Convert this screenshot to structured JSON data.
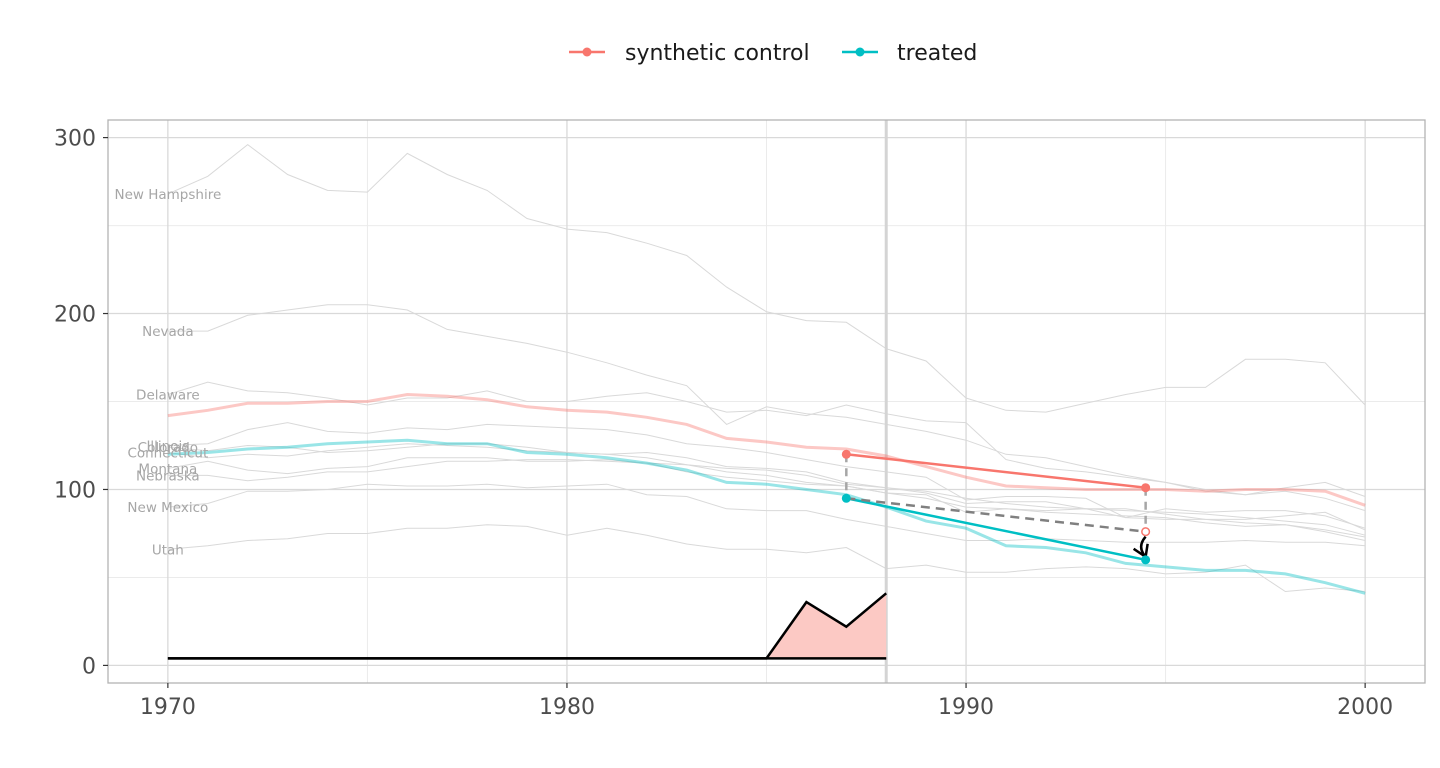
{
  "chart_data": {
    "type": "line",
    "title": "",
    "xlabel": "",
    "ylabel": "",
    "xlim": [
      1968.5,
      2001.5
    ],
    "ylim": [
      -10,
      310
    ],
    "x_ticks": [
      1970,
      1980,
      1990,
      2000
    ],
    "y_ticks": [
      0,
      100,
      200,
      300
    ],
    "grid": true,
    "legend": {
      "position": "top",
      "entries": [
        {
          "label": "synthetic control",
          "color": "#F8766D"
        },
        {
          "label": "treated",
          "color": "#00BFC4"
        }
      ]
    },
    "intervention_year": 1988,
    "colors": {
      "synthetic": "#F8766D",
      "treated": "#00BFC4",
      "donor": "#d9d9d9",
      "weights_fill": "#fcc9c4",
      "weights_line": "#000000",
      "arrow": "#808080",
      "border": "#b3b3b3",
      "grid_major": "#d9d9d9",
      "grid_minor": "#ebebeb"
    },
    "donor_series": [
      {
        "name": "New Hampshire",
        "years": [
          1970,
          1971,
          1972,
          1973,
          1974,
          1975,
          1976,
          1977,
          1978,
          1979,
          1980,
          1981,
          1982,
          1983,
          1984,
          1985,
          1986,
          1987,
          1988,
          1989,
          1990,
          1991,
          1992,
          1993,
          1994,
          1995,
          1996,
          1997,
          1998,
          1999,
          2000
        ],
        "values": [
          268,
          278,
          296,
          279,
          270,
          269,
          291,
          279,
          270,
          254,
          248,
          246,
          240,
          233,
          215,
          201,
          196,
          195,
          180,
          173,
          152,
          145,
          144,
          149,
          154,
          158,
          158,
          174,
          174,
          172,
          148
        ]
      },
      {
        "name": "Nevada",
        "years": [
          1970,
          1971,
          1972,
          1973,
          1974,
          1975,
          1976,
          1977,
          1978,
          1979,
          1980,
          1981,
          1982,
          1983,
          1984,
          1985,
          1986,
          1987,
          1988,
          1989,
          1990,
          1991,
          1992,
          1993,
          1994,
          1995,
          1996,
          1997,
          1998,
          1999,
          2000
        ],
        "values": [
          190,
          190,
          199,
          202,
          205,
          205,
          202,
          191,
          187,
          183,
          178,
          172,
          165,
          159,
          137,
          147,
          143,
          141,
          137,
          133,
          128,
          120,
          118,
          113,
          108,
          104,
          100,
          97,
          101,
          104,
          96
        ]
      },
      {
        "name": "Delaware",
        "years": [
          1970,
          1971,
          1972,
          1973,
          1974,
          1975,
          1976,
          1977,
          1978,
          1979,
          1980,
          1981,
          1982,
          1983,
          1984,
          1985,
          1986,
          1987,
          1988,
          1989,
          1990,
          1991,
          1992,
          1993,
          1994,
          1995,
          1996,
          1997,
          1998,
          1999,
          2000
        ],
        "values": [
          154,
          161,
          156,
          155,
          152,
          148,
          152,
          152,
          156,
          150,
          150,
          153,
          155,
          150,
          144,
          145,
          142,
          148,
          143,
          139,
          138,
          117,
          112,
          110,
          107,
          104,
          99,
          97,
          99,
          95,
          88
        ]
      },
      {
        "name": "Illinois",
        "years": [
          1970,
          1971,
          1972,
          1973,
          1974,
          1975,
          1976,
          1977,
          1978,
          1979,
          1980,
          1981,
          1982,
          1983,
          1984,
          1985,
          1986,
          1987,
          1988,
          1989,
          1990,
          1991,
          1992,
          1993,
          1994,
          1995,
          1996,
          1997,
          1998,
          1999,
          2000
        ],
        "values": [
          125,
          126,
          134,
          138,
          133,
          132,
          135,
          134,
          137,
          136,
          135,
          134,
          131,
          126,
          124,
          121,
          117,
          113,
          110,
          107,
          94,
          96,
          96,
          95,
          84,
          89,
          87,
          88,
          88,
          85,
          78
        ]
      },
      {
        "name": "Colorado",
        "years": [
          1970,
          1971,
          1972,
          1973,
          1974,
          1975,
          1976,
          1977,
          1978,
          1979,
          1980,
          1981,
          1982,
          1983,
          1984,
          1985,
          1986,
          1987,
          1988,
          1989,
          1990,
          1991,
          1992,
          1993,
          1994,
          1995,
          1996,
          1997,
          1998,
          1999,
          2000
        ],
        "values": [
          124,
          122,
          125,
          124,
          121,
          122,
          124,
          126,
          126,
          124,
          121,
          120,
          121,
          118,
          113,
          112,
          110,
          104,
          101,
          98,
          92,
          93,
          93,
          89,
          89,
          86,
          83,
          81,
          80,
          77,
          73
        ]
      },
      {
        "name": "Connecticut",
        "years": [
          1970,
          1971,
          1972,
          1973,
          1974,
          1975,
          1976,
          1977,
          1978,
          1979,
          1980,
          1981,
          1982,
          1983,
          1984,
          1985,
          1986,
          1987,
          1988,
          1989,
          1990,
          1991,
          1992,
          1993,
          1994,
          1995,
          1996,
          1997,
          1998,
          1999,
          2000
        ],
        "values": [
          121,
          118,
          120,
          119,
          122,
          124,
          126,
          125,
          124,
          122,
          121,
          120,
          118,
          114,
          112,
          111,
          108,
          103,
          101,
          99,
          95,
          92,
          90,
          89,
          88,
          87,
          86,
          84,
          82,
          80,
          74
        ]
      },
      {
        "name": "Montana",
        "years": [
          1970,
          1971,
          1972,
          1973,
          1974,
          1975,
          1976,
          1977,
          1978,
          1979,
          1980,
          1981,
          1982,
          1983,
          1984,
          1985,
          1986,
          1987,
          1988,
          1989,
          1990,
          1991,
          1992,
          1993,
          1994,
          1995,
          1996,
          1997,
          1998,
          1999,
          2000
        ],
        "values": [
          112,
          116,
          111,
          109,
          112,
          113,
          118,
          118,
          118,
          116,
          116,
          117,
          115,
          114,
          110,
          108,
          104,
          102,
          98,
          97,
          87,
          89,
          88,
          89,
          84,
          83,
          83,
          83,
          85,
          87,
          77
        ]
      },
      {
        "name": "Nebraska",
        "years": [
          1970,
          1971,
          1972,
          1973,
          1974,
          1975,
          1976,
          1977,
          1978,
          1979,
          1980,
          1981,
          1982,
          1983,
          1984,
          1985,
          1986,
          1987,
          1988,
          1989,
          1990,
          1991,
          1992,
          1993,
          1994,
          1995,
          1996,
          1997,
          1998,
          1999,
          2000
        ],
        "values": [
          108,
          108,
          105,
          107,
          110,
          110,
          113,
          116,
          116,
          117,
          117,
          116,
          115,
          110,
          107,
          105,
          103,
          102,
          98,
          95,
          90,
          89,
          87,
          86,
          85,
          84,
          81,
          79,
          80,
          76,
          71
        ]
      },
      {
        "name": "New Mexico",
        "years": [
          1970,
          1971,
          1972,
          1973,
          1974,
          1975,
          1976,
          1977,
          1978,
          1979,
          1980,
          1981,
          1982,
          1983,
          1984,
          1985,
          1986,
          1987,
          1988,
          1989,
          1990,
          1991,
          1992,
          1993,
          1994,
          1995,
          1996,
          1997,
          1998,
          1999,
          2000
        ],
        "values": [
          90,
          92,
          99,
          99,
          100,
          103,
          102,
          102,
          103,
          101,
          102,
          103,
          97,
          96,
          89,
          88,
          88,
          83,
          79,
          75,
          71,
          71,
          72,
          71,
          70,
          70,
          70,
          71,
          70,
          70,
          68
        ]
      },
      {
        "name": "Utah",
        "years": [
          1970,
          1971,
          1972,
          1973,
          1974,
          1975,
          1976,
          1977,
          1978,
          1979,
          1980,
          1981,
          1982,
          1983,
          1984,
          1985,
          1986,
          1987,
          1988,
          1989,
          1990,
          1991,
          1992,
          1993,
          1994,
          1995,
          1996,
          1997,
          1998,
          1999,
          2000
        ],
        "values": [
          66,
          68,
          71,
          72,
          75,
          75,
          78,
          78,
          80,
          79,
          74,
          78,
          74,
          69,
          66,
          66,
          64,
          67,
          55,
          57,
          53,
          53,
          55,
          56,
          55,
          52,
          53,
          57,
          42,
          44,
          42
        ]
      }
    ],
    "treated_series": {
      "years": [
        1970,
        1971,
        1972,
        1973,
        1974,
        1975,
        1976,
        1977,
        1978,
        1979,
        1980,
        1981,
        1982,
        1983,
        1984,
        1985,
        1986,
        1987,
        1988,
        1989,
        1990,
        1991,
        1992,
        1993,
        1994,
        1995,
        1996,
        1997,
        1998,
        1999,
        2000
      ],
      "values": [
        120,
        121,
        123,
        124,
        126,
        127,
        128,
        126,
        126,
        121,
        120,
        118,
        115,
        111,
        104,
        103,
        100,
        97,
        90,
        82,
        78,
        68,
        67,
        64,
        58,
        56,
        54,
        54,
        52,
        47,
        41
      ]
    },
    "synthetic_series": {
      "years": [
        1970,
        1971,
        1972,
        1973,
        1974,
        1975,
        1976,
        1977,
        1978,
        1979,
        1980,
        1981,
        1982,
        1983,
        1984,
        1985,
        1986,
        1987,
        1988,
        1989,
        1990,
        1991,
        1992,
        1993,
        1994,
        1995,
        1996,
        1997,
        1998,
        1999,
        2000
      ],
      "values": [
        142,
        145,
        149,
        149,
        150,
        150,
        154,
        153,
        151,
        147,
        145,
        144,
        141,
        137,
        129,
        127,
        124,
        123,
        119,
        113,
        107,
        102,
        101,
        100,
        100,
        100,
        99,
        100,
        100,
        99,
        91
      ]
    },
    "weights_area": {
      "years": [
        1970,
        1985,
        1986,
        1987,
        1988
      ],
      "values": [
        4,
        4,
        36,
        22,
        41
      ],
      "baseline": 4
    },
    "highlight_points": {
      "synthetic": [
        {
          "x": 1987,
          "y": 120
        },
        {
          "x": 1994.5,
          "y": 101
        }
      ],
      "treated": [
        {
          "x": 1987,
          "y": 95
        },
        {
          "x": 1994.5,
          "y": 60
        }
      ],
      "projected_synthetic": {
        "x": 1994.5,
        "y": 76
      }
    }
  }
}
